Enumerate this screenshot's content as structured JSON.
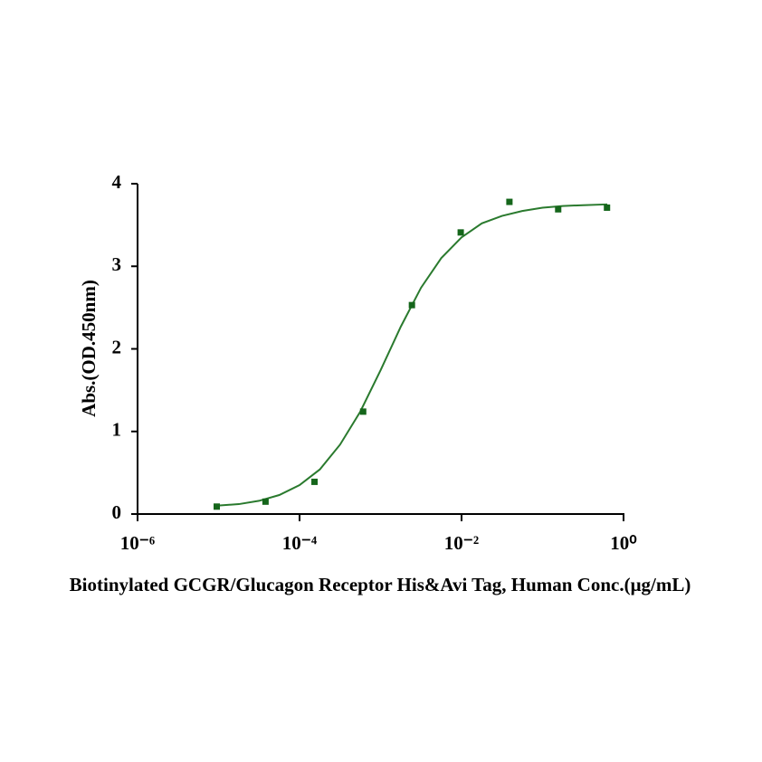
{
  "chart_data": {
    "type": "scatter",
    "xlabel": "Biotinylated GCGR/Glucagon Receptor His&Avi Tag, Human Conc.(μg/mL)",
    "ylabel": "Abs.(OD.450nm)",
    "xscale": "log",
    "xlim": [
      1e-06,
      1
    ],
    "xticks": [
      {
        "value": 1e-06,
        "label": "10⁻⁶"
      },
      {
        "value": 0.0001,
        "label": "10⁻⁴"
      },
      {
        "value": 0.01,
        "label": "10⁻²"
      },
      {
        "value": 1,
        "label": "10⁰"
      }
    ],
    "ylim": [
      0,
      4
    ],
    "yticks": [
      0,
      1,
      2,
      3,
      4
    ],
    "series": [
      {
        "color": "#15661b",
        "marker": "square",
        "x": [
          9.5e-06,
          3.8e-05,
          0.000153,
          0.00061,
          0.00244,
          0.00977,
          0.039,
          0.156,
          0.625
        ],
        "values": [
          0.09,
          0.15,
          0.39,
          1.24,
          2.53,
          3.41,
          3.78,
          3.69,
          3.71
        ]
      },
      {
        "color": "#2a7a2e",
        "marker": "line",
        "x": [
          9.1e-06,
          1.78e-05,
          3.16e-05,
          5.62e-05,
          0.0001,
          0.000178,
          0.000316,
          0.000562,
          0.001,
          0.00178,
          0.00316,
          0.00562,
          0.01,
          0.0178,
          0.0316,
          0.0562,
          0.1,
          0.178,
          0.316,
          0.631
        ],
        "values": [
          0.1,
          0.12,
          0.16,
          0.23,
          0.35,
          0.54,
          0.84,
          1.24,
          1.74,
          2.27,
          2.74,
          3.1,
          3.35,
          3.52,
          3.61,
          3.67,
          3.71,
          3.73,
          3.74,
          3.75
        ]
      }
    ]
  }
}
